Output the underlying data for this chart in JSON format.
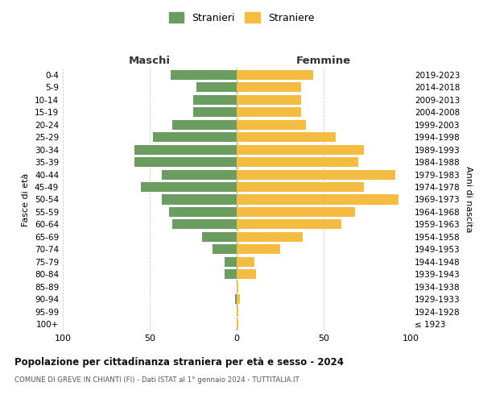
{
  "age_groups": [
    "100+",
    "95-99",
    "90-94",
    "85-89",
    "80-84",
    "75-79",
    "70-74",
    "65-69",
    "60-64",
    "55-59",
    "50-54",
    "45-49",
    "40-44",
    "35-39",
    "30-34",
    "25-29",
    "20-24",
    "15-19",
    "10-14",
    "5-9",
    "0-4"
  ],
  "birth_years": [
    "≤ 1923",
    "1924-1928",
    "1929-1933",
    "1934-1938",
    "1939-1943",
    "1944-1948",
    "1949-1953",
    "1954-1958",
    "1959-1963",
    "1964-1968",
    "1969-1973",
    "1974-1978",
    "1979-1983",
    "1984-1988",
    "1989-1993",
    "1994-1998",
    "1999-2003",
    "2004-2008",
    "2009-2013",
    "2014-2018",
    "2019-2023"
  ],
  "maschi": [
    0,
    0,
    1,
    0,
    7,
    7,
    14,
    20,
    37,
    39,
    43,
    55,
    43,
    59,
    59,
    48,
    37,
    25,
    25,
    23,
    38
  ],
  "femmine": [
    1,
    1,
    2,
    1,
    11,
    10,
    25,
    38,
    60,
    68,
    93,
    73,
    91,
    70,
    73,
    57,
    40,
    37,
    37,
    37,
    44
  ],
  "maschi_color": "#6a9d5f",
  "femmine_color": "#f5bc42",
  "title": "Popolazione per cittadinanza straniera per età e sesso - 2024",
  "subtitle": "COMUNE DI GREVE IN CHIANTI (FI) - Dati ISTAT al 1° gennaio 2024 - TUTTITALIA.IT",
  "xlabel_left": "Maschi",
  "xlabel_right": "Femmine",
  "ylabel_left": "Fasce di età",
  "ylabel_right": "Anni di nascita",
  "legend_stranieri": "Stranieri",
  "legend_straniere": "Straniere",
  "xlim": 100,
  "background_color": "#ffffff",
  "grid_color": "#cccccc"
}
